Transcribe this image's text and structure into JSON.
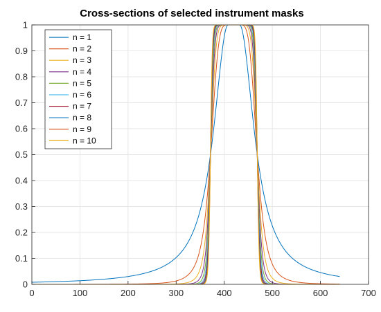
{
  "chart_data": {
    "type": "line",
    "title": "Cross-sections of selected instrument masks",
    "xlabel": "",
    "ylabel": "",
    "xlim": [
      0,
      700
    ],
    "ylim": [
      0,
      1
    ],
    "x_ticks": [
      0,
      100,
      200,
      300,
      400,
      500,
      600,
      700
    ],
    "y_ticks": [
      0,
      0.1,
      0.2,
      0.3,
      0.4,
      0.5,
      0.6,
      0.7,
      0.8,
      0.9,
      1
    ],
    "grid": true,
    "legend_position": "top-left",
    "x_range": [
      0,
      640
    ],
    "profile": {
      "center": 420,
      "plateau_half_width": 12,
      "crossing_value": 0.7,
      "crossing_half_width": 36
    },
    "series": [
      {
        "name": "n = 1",
        "order": 1,
        "color": "#0072BD"
      },
      {
        "name": "n = 2",
        "order": 2,
        "color": "#D95319"
      },
      {
        "name": "n = 3",
        "order": 3,
        "color": "#EDB120"
      },
      {
        "name": "n = 4",
        "order": 4,
        "color": "#7E2F8E"
      },
      {
        "name": "n = 5",
        "order": 5,
        "color": "#77AC30"
      },
      {
        "name": "n = 6",
        "order": 6,
        "color": "#4DBEEE"
      },
      {
        "name": "n = 7",
        "order": 7,
        "color": "#A2142F"
      },
      {
        "name": "n = 8",
        "order": 8,
        "color": "#0072BD"
      },
      {
        "name": "n = 9",
        "order": 9,
        "color": "#D95319"
      },
      {
        "name": "n = 10",
        "order": 10,
        "color": "#EDB120"
      }
    ]
  }
}
